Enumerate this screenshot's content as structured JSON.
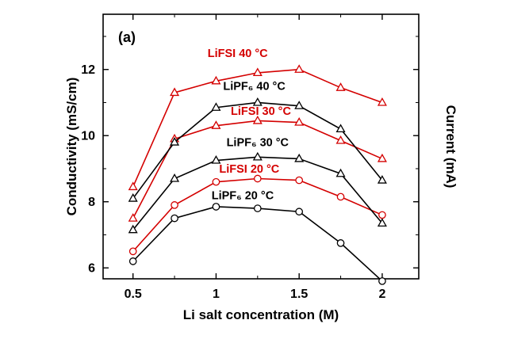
{
  "figure": {
    "panel_label": "(a)",
    "background": "#ffffff"
  },
  "chart_data": {
    "type": "line",
    "title": "",
    "xlabel": "Li salt concentration (M)",
    "ylabel_left": "Conductivity (mS/cm)",
    "ylabel_right": "Current (mA)",
    "xlim": [
      0.32,
      2.22
    ],
    "ylim": [
      5.67,
      13.67
    ],
    "xticks": [
      0.5,
      1,
      1.5,
      2
    ],
    "xtick_labels": [
      "0.5",
      "1",
      "1.5",
      "2"
    ],
    "xticks_minor": [
      0.75,
      1.25,
      1.75
    ],
    "yticks": [
      6,
      8,
      10,
      12
    ],
    "ytick_labels": [
      "6",
      "8",
      "10",
      "12"
    ],
    "yticks_minor": [
      7,
      9,
      11,
      13
    ],
    "grid": false,
    "legend": "inline-curve-labels",
    "axis_color": "#000000",
    "x": [
      0.5,
      0.75,
      1.0,
      1.25,
      1.5,
      1.75,
      2.0
    ],
    "series": [
      {
        "name": "LiFSI 40 °C",
        "color": "#d40000",
        "marker": "triangle",
        "values": [
          8.45,
          11.3,
          11.65,
          11.9,
          12.0,
          11.45,
          11.0
        ],
        "label": {
          "text": "LiFSI 40 °C",
          "x": 1.13,
          "y": 12.5
        }
      },
      {
        "name": "LiPF₆ 40 °C",
        "color": "#000000",
        "marker": "triangle",
        "values": [
          8.1,
          9.8,
          10.85,
          11.0,
          10.9,
          10.2,
          8.65
        ],
        "label": {
          "text": "LiPF₆ 40 °C",
          "x": 1.23,
          "y": 11.5
        }
      },
      {
        "name": "LiFSI 30 °C",
        "color": "#d40000",
        "marker": "triangle",
        "values": [
          7.5,
          9.9,
          10.3,
          10.45,
          10.4,
          9.85,
          9.3
        ],
        "label": {
          "text": "LiFSI 30 °C",
          "x": 1.27,
          "y": 10.75
        }
      },
      {
        "name": "LiPF₆ 30 °C",
        "color": "#000000",
        "marker": "triangle",
        "values": [
          7.15,
          8.7,
          9.25,
          9.35,
          9.3,
          8.85,
          7.35
        ],
        "label": {
          "text": "LiPF₆ 30 °C",
          "x": 1.25,
          "y": 9.8
        }
      },
      {
        "name": "LiFSI 20 °C",
        "color": "#d40000",
        "marker": "circle",
        "values": [
          6.5,
          7.9,
          8.6,
          8.7,
          8.65,
          8.15,
          7.6
        ],
        "label": {
          "text": "LiFSI 20 °C",
          "x": 1.2,
          "y": 9.0
        }
      },
      {
        "name": "LiPF₆ 20 °C",
        "color": "#000000",
        "marker": "circle",
        "values": [
          6.2,
          7.5,
          7.85,
          7.8,
          7.7,
          6.75,
          5.6
        ],
        "label": {
          "text": "LiPF₆ 20 °C",
          "x": 1.16,
          "y": 8.2
        }
      }
    ]
  }
}
